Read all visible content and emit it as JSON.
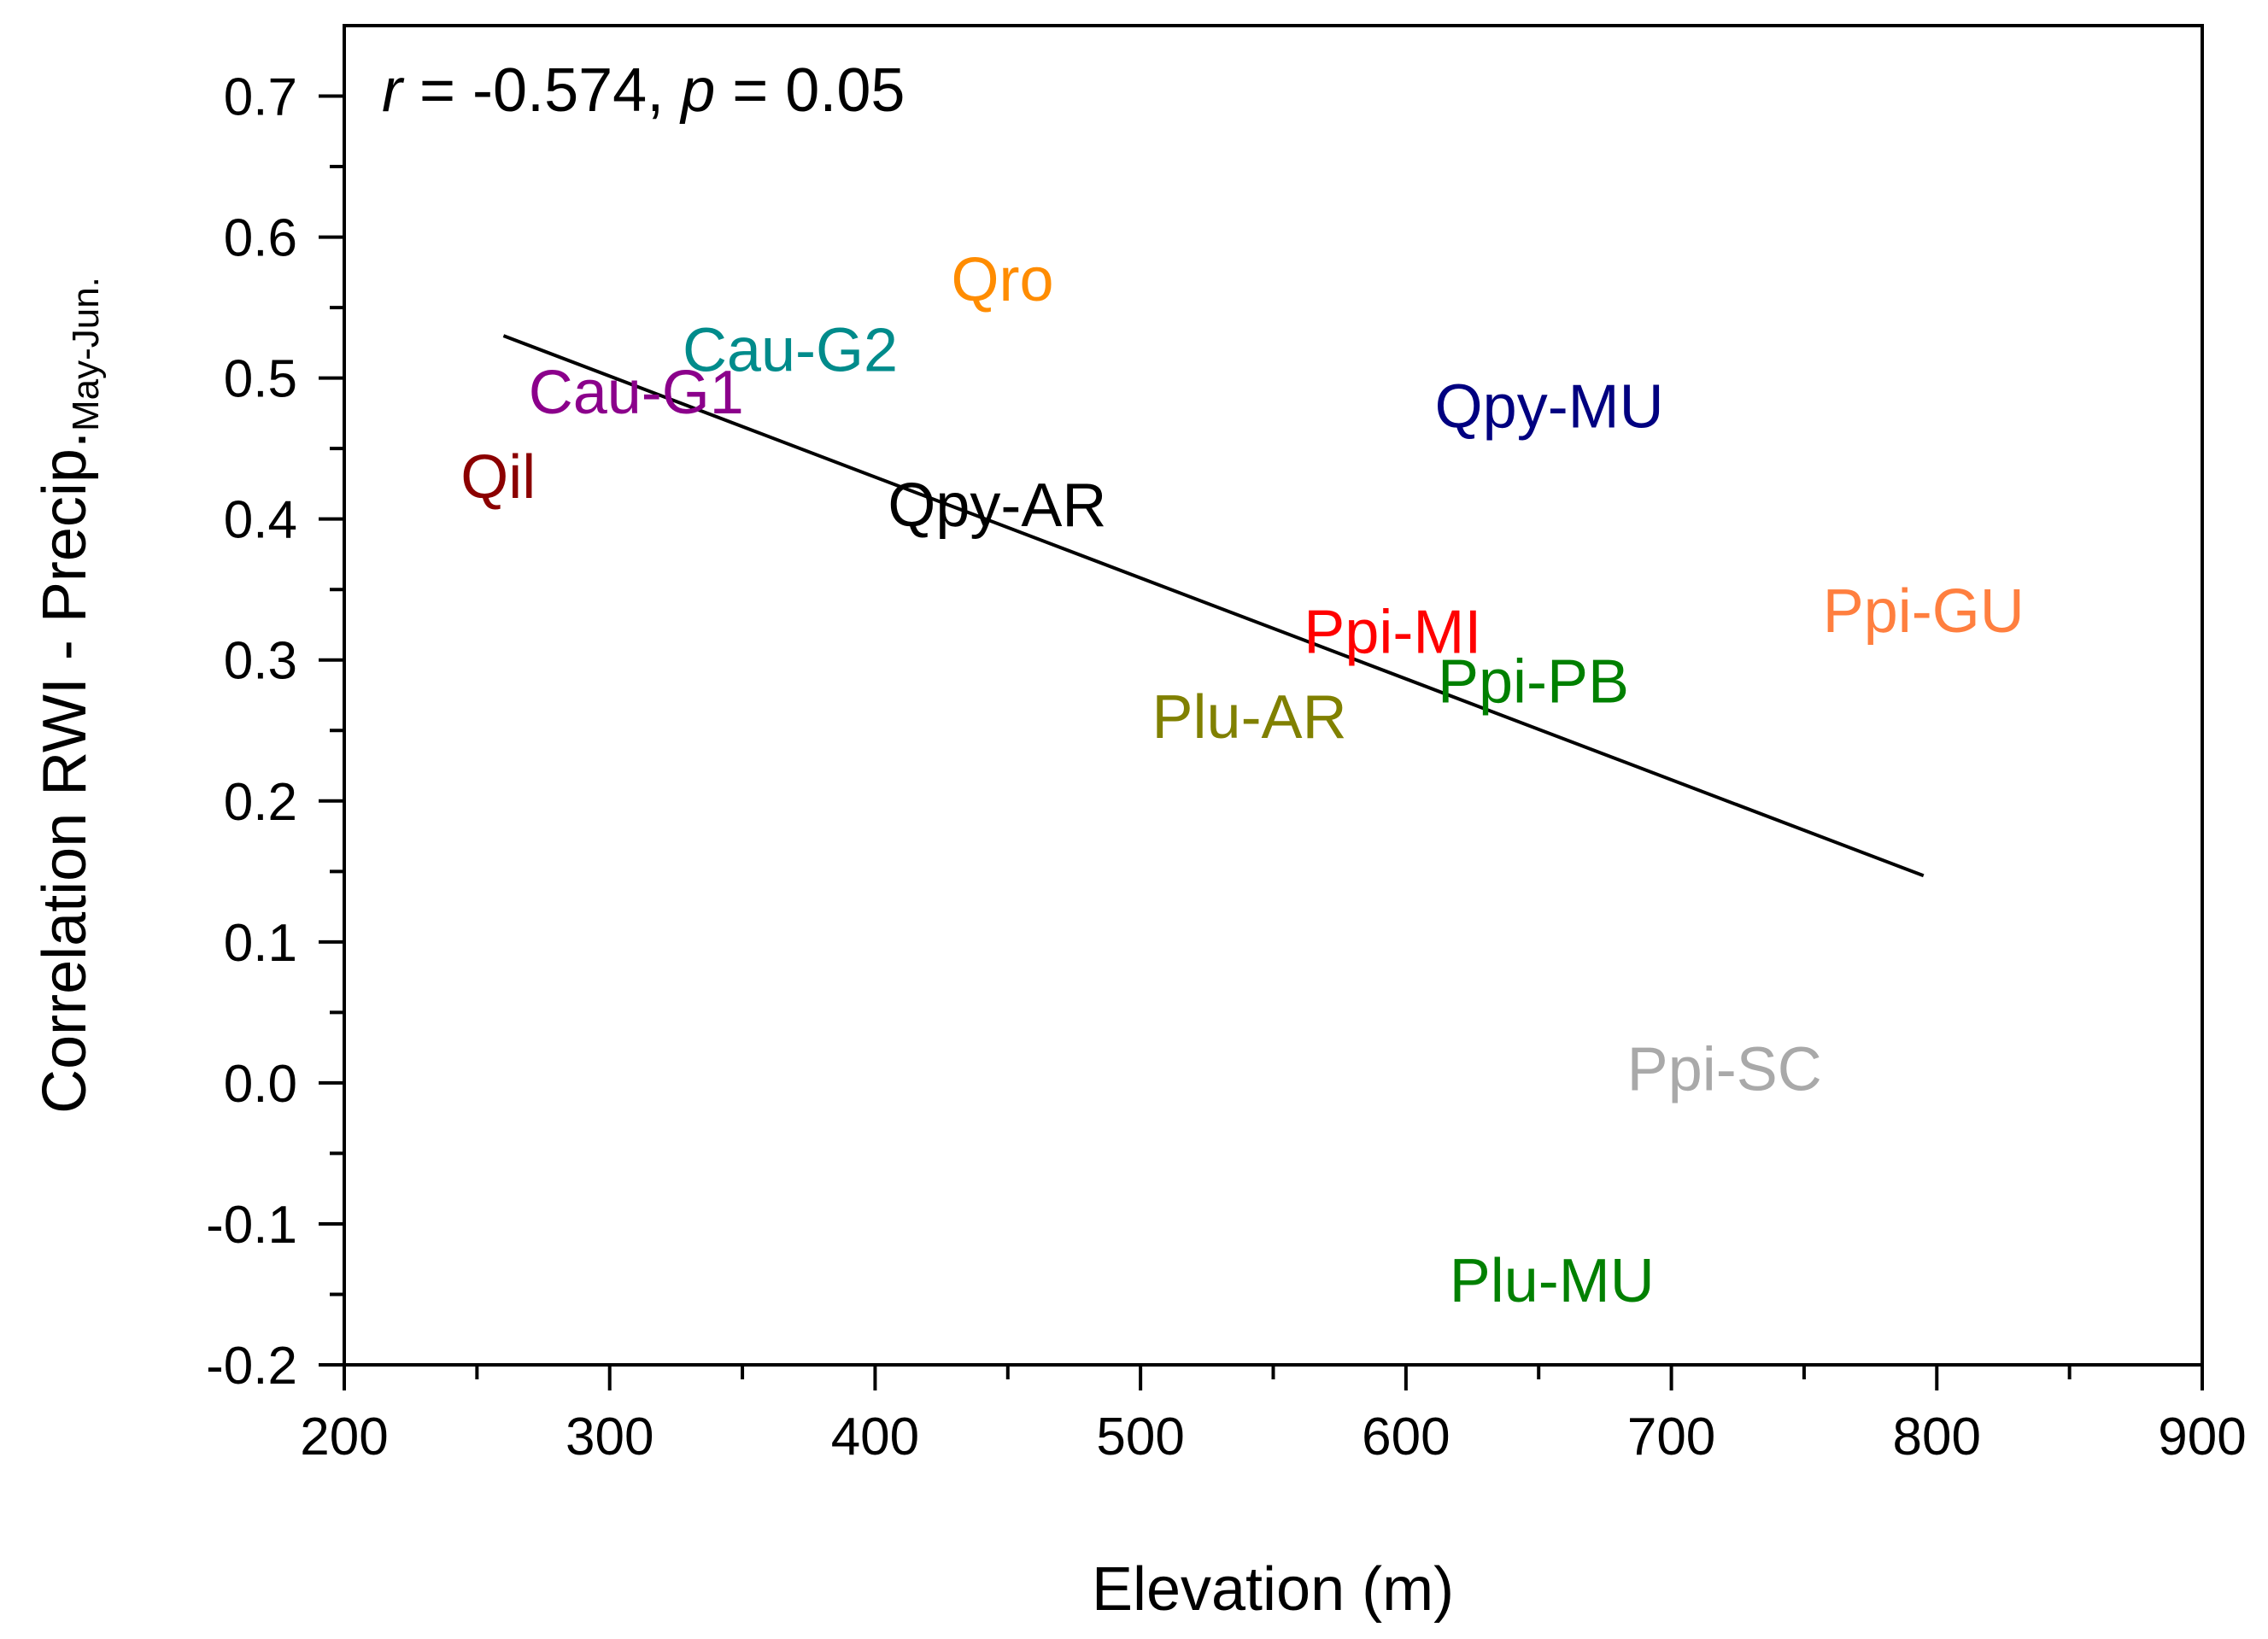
{
  "chart_data": {
    "type": "scatter",
    "title": "",
    "xlabel": "Elevation (m)",
    "ylabel_main": "Correlation RWI - Precip.",
    "ylabel_sub": "May-Jun.",
    "xlim": [
      200,
      900
    ],
    "ylim": [
      -0.2,
      0.75
    ],
    "x_ticks": [
      200,
      300,
      400,
      500,
      600,
      700,
      800,
      900
    ],
    "x_tick_labels": [
      "200",
      "300",
      "400",
      "500",
      "600",
      "700",
      "800",
      "900"
    ],
    "y_ticks": [
      -0.2,
      -0.1,
      0.0,
      0.1,
      0.2,
      0.3,
      0.4,
      0.5,
      0.6,
      0.7
    ],
    "y_tick_labels": [
      "-0.2",
      "-0.1",
      "0.0",
      "0.1",
      "0.2",
      "0.3",
      "0.4",
      "0.5",
      "0.6",
      "0.7"
    ],
    "grid": false,
    "annotation": {
      "r_symbol": "r",
      "r_value": " = -0.574, ",
      "p_symbol": "p",
      "p_value": " = 0.05"
    },
    "points": [
      {
        "label": "Qil",
        "x": 258,
        "y": 0.43,
        "color": "#8b0000"
      },
      {
        "label": "Cau-G1",
        "x": 310,
        "y": 0.49,
        "color": "#8b008b"
      },
      {
        "label": "Cau-G2",
        "x": 368,
        "y": 0.52,
        "color": "#008b8b"
      },
      {
        "label": "Qro",
        "x": 448,
        "y": 0.57,
        "color": "#ff8c00"
      },
      {
        "label": "Qpy-AR",
        "x": 446,
        "y": 0.41,
        "color": "#000000"
      },
      {
        "label": "Plu-AR",
        "x": 541,
        "y": 0.26,
        "color": "#808000"
      },
      {
        "label": "Ppi-MI",
        "x": 595,
        "y": 0.32,
        "color": "#ff0000"
      },
      {
        "label": "Ppi-PB",
        "x": 648,
        "y": 0.285,
        "color": "#008000"
      },
      {
        "label": "Qpy-MU",
        "x": 654,
        "y": 0.48,
        "color": "#000080"
      },
      {
        "label": "Ppi-SC",
        "x": 720,
        "y": 0.01,
        "color": "#a9a9a9"
      },
      {
        "label": "Ppi-GU",
        "x": 795,
        "y": 0.335,
        "color": "#ff7f3f"
      },
      {
        "label": "Plu-MU",
        "x": 655,
        "y": -0.14,
        "color": "#008000"
      }
    ],
    "regression_line": {
      "x": [
        260,
        795
      ],
      "y": [
        0.53,
        0.147
      ],
      "color": "#000000"
    }
  }
}
